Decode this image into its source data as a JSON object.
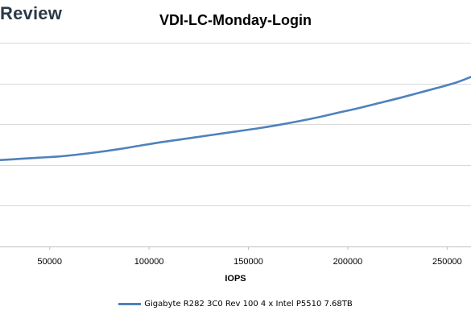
{
  "watermark": "Review",
  "chart_data": {
    "type": "line",
    "title": "VDI-LC-Monday-Login",
    "xlabel": "IOPS",
    "ylabel": "",
    "xlim": [
      25000,
      262000
    ],
    "ylim": [
      0,
      5
    ],
    "xticks": [
      50000,
      100000,
      150000,
      200000,
      250000
    ],
    "yticks": [
      0,
      1,
      2,
      3,
      4,
      5
    ],
    "grid": "horizontal",
    "legend_position": "bottom",
    "series": [
      {
        "name": "Gigabyte R282 3C0 Rev 100 4 x Intel P5510 7.68TB",
        "color": "#4f81bd",
        "x": [
          25000,
          35000,
          45000,
          55000,
          65000,
          75000,
          85000,
          95000,
          105000,
          115000,
          125000,
          135000,
          145000,
          155000,
          165000,
          175000,
          185000,
          195000,
          205000,
          215000,
          225000,
          235000,
          245000,
          255000,
          262000
        ],
        "y": [
          2.12,
          2.15,
          2.18,
          2.21,
          2.26,
          2.32,
          2.39,
          2.47,
          2.55,
          2.62,
          2.69,
          2.76,
          2.83,
          2.9,
          2.98,
          3.07,
          3.17,
          3.28,
          3.39,
          3.51,
          3.63,
          3.76,
          3.89,
          4.03,
          4.16
        ]
      }
    ]
  }
}
